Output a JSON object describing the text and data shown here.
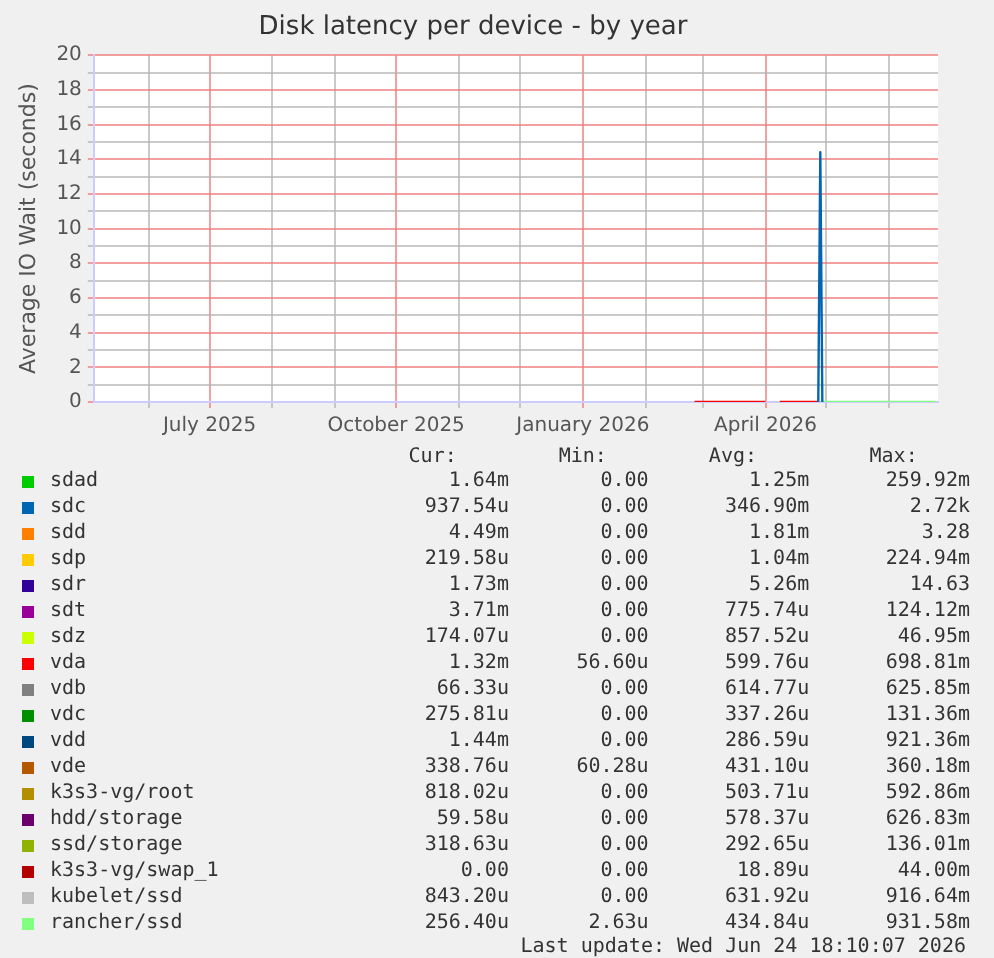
{
  "chart_data": {
    "type": "line",
    "title": "Disk latency per device - by year",
    "ylabel": "Average IO Wait (seconds)",
    "xlim": [
      "2025-05-05",
      "2026-06-25"
    ],
    "xticks": [
      {
        "value": "2025-06",
        "label": null
      },
      {
        "value": "2025-07",
        "label": "July 2025"
      },
      {
        "value": "2025-08",
        "label": null
      },
      {
        "value": "2025-09",
        "label": null
      },
      {
        "value": "2025-10",
        "label": "October 2025"
      },
      {
        "value": "2025-11",
        "label": null
      },
      {
        "value": "2025-12",
        "label": null
      },
      {
        "value": "2026-01",
        "label": "January 2026"
      },
      {
        "value": "2026-02",
        "label": null
      },
      {
        "value": "2026-03",
        "label": null
      },
      {
        "value": "2026-04",
        "label": "April 2026"
      },
      {
        "value": "2026-05",
        "label": null
      },
      {
        "value": "2026-06",
        "label": null
      }
    ],
    "ylim": [
      0,
      20
    ],
    "yticks": [
      0,
      {
        "value": 1,
        "label": null
      },
      2,
      {
        "value": 3,
        "label": null
      },
      4,
      {
        "value": 5,
        "label": null
      },
      6,
      {
        "value": 7,
        "label": null
      },
      8,
      {
        "value": 9,
        "label": null
      },
      10,
      {
        "value": 11,
        "label": null
      },
      12,
      {
        "value": 13,
        "label": null
      },
      14,
      {
        "value": 15,
        "label": null
      },
      16,
      {
        "value": 17,
        "label": null
      },
      18,
      {
        "value": 19,
        "label": null
      },
      20
    ],
    "grid": true,
    "legend": "bottom",
    "marker": "none",
    "line_style": "solid",
    "series": [
      {
        "name": "sdad",
        "color": "#00cc00"
      },
      {
        "name": "sdc",
        "color": "#0066b3",
        "x": [
          "2026-04-27",
          "2026-04-28",
          "2026-04-29"
        ],
        "values": [
          0,
          14.4,
          0
        ]
      },
      {
        "name": "sdd",
        "color": "#ff8000"
      },
      {
        "name": "sdp",
        "color": "#ffcc00"
      },
      {
        "name": "sdr",
        "color": "#330099"
      },
      {
        "name": "sdt",
        "color": "#990099"
      },
      {
        "name": "sdz",
        "color": "#ccff00"
      },
      {
        "name": "vda",
        "color": "#ff0000",
        "x": [
          "2026-02-25",
          "2026-04-01",
          "2026-04-04",
          "2026-04-08",
          "2026-04-27"
        ],
        "values": [
          0,
          0,
          null,
          0,
          0
        ]
      },
      {
        "name": "vdb",
        "color": "#808080"
      },
      {
        "name": "vdc",
        "color": "#008f00"
      },
      {
        "name": "vdd",
        "color": "#00487d"
      },
      {
        "name": "vde",
        "color": "#b35a00"
      },
      {
        "name": "k3s3-vg/root",
        "color": "#b38f00"
      },
      {
        "name": "hdd/storage",
        "color": "#6b006b"
      },
      {
        "name": "ssd/storage",
        "color": "#8fb300"
      },
      {
        "name": "k3s3-vg/swap_1",
        "color": "#b30000"
      },
      {
        "name": "kubelet/ssd",
        "color": "#bebebe"
      },
      {
        "name": "rancher/ssd",
        "color": "#80ff80",
        "x": [
          "2026-04-29",
          "2026-06-24"
        ],
        "values": [
          0,
          0
        ]
      }
    ],
    "annotations": [
      "Cur:",
      "Min:",
      "Avg:",
      "Max:",
      "1.64m",
      "0.00",
      "1.25m",
      "259.92m",
      "937.54u",
      "0.00",
      "346.90m",
      "2.72k",
      "4.49m",
      "0.00",
      "1.81m",
      "3.28",
      "219.58u",
      "0.00",
      "1.04m",
      "224.94m",
      "1.73m",
      "0.00",
      "5.26m",
      "14.63",
      "3.71m",
      "0.00",
      "775.74u",
      "124.12m",
      "174.07u",
      "0.00",
      "857.52u",
      "46.95m",
      "1.32m",
      "56.60u",
      "599.76u",
      "698.81m",
      "66.33u",
      "0.00",
      "614.77u",
      "625.85m",
      "275.81u",
      "0.00",
      "337.26u",
      "131.36m",
      "1.44m",
      "0.00",
      "286.59u",
      "921.36m",
      "338.76u",
      "60.28u",
      "431.10u",
      "360.18m",
      "818.02u",
      "0.00",
      "503.71u",
      "592.86m",
      "59.58u",
      "0.00",
      "578.37u",
      "626.83m",
      "318.63u",
      "0.00",
      "292.65u",
      "136.01m",
      "0.00",
      "0.00",
      "18.89u",
      "44.00m",
      "843.20u",
      "0.00",
      "631.92u",
      "916.64m",
      "256.40u",
      "2.63u",
      "434.84u",
      "931.58m",
      "Last update: Wed Jun 24 18:10:07 2026"
    ]
  }
}
